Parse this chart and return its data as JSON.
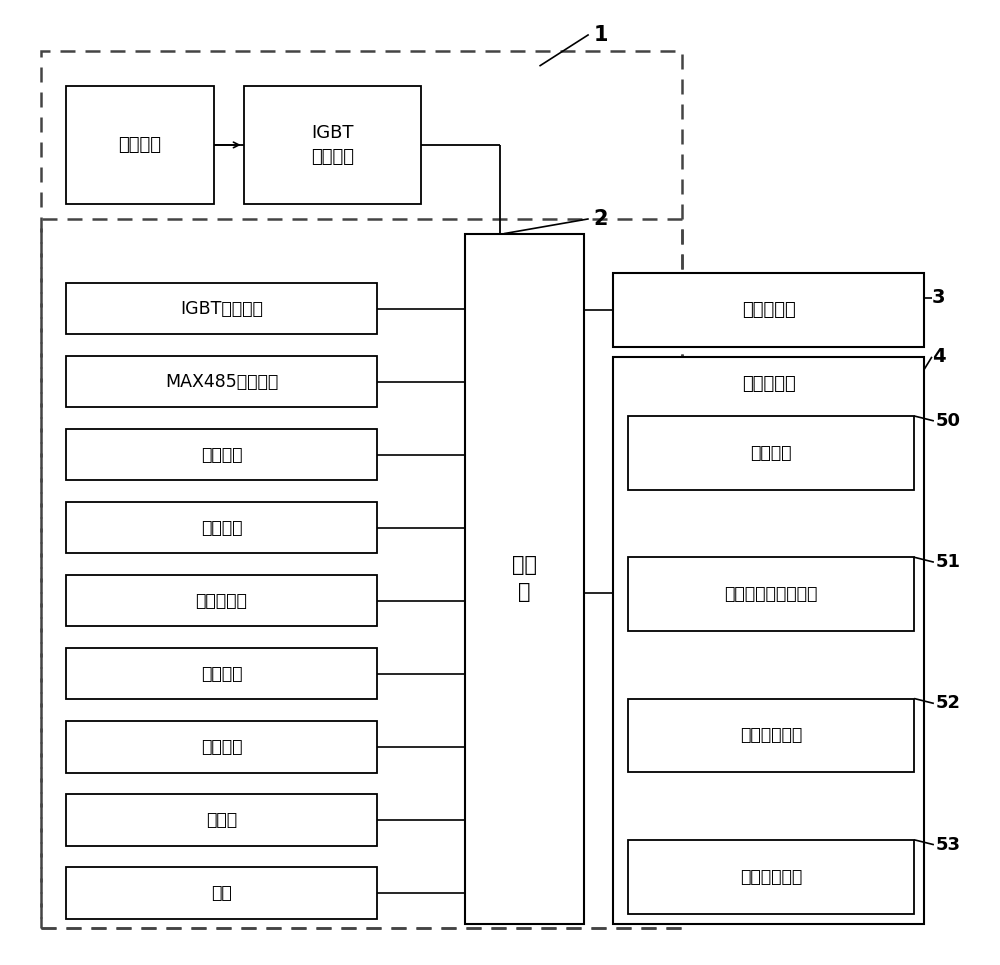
{
  "fig_width": 10.0,
  "fig_height": 9.65,
  "bg_color": "#ffffff",
  "label1": "1",
  "label2": "2",
  "label3": "3",
  "label4": "4",
  "label50": "50",
  "label51": "51",
  "label52": "52",
  "label53": "53",
  "box_gonglvxiquan": "功率线圈",
  "box_IGBT": "IGBT\n功率控制",
  "box_processor": "处理\n器",
  "box_IGBT_detect": "IGBT温度检测",
  "box_MAX485": "MAX485通信模块",
  "box_panel": "面板控制",
  "box_overcurrent": "过流监测",
  "box_overvoltage": "超欠压检测",
  "box_noload": "空载检测",
  "box_power": "电源电路",
  "box_buzzer": "蜂鸣器",
  "box_fan": "风扇",
  "box_temp_sensor": "温度传感器",
  "box_module_storage": "模块存储器",
  "box_cooking": "烹饪模块",
  "box_temp_deviation": "温度偏差消化子模块",
  "box_temp_compensation": "温度补偿模块",
  "box_high_temp": "高温限制模块"
}
